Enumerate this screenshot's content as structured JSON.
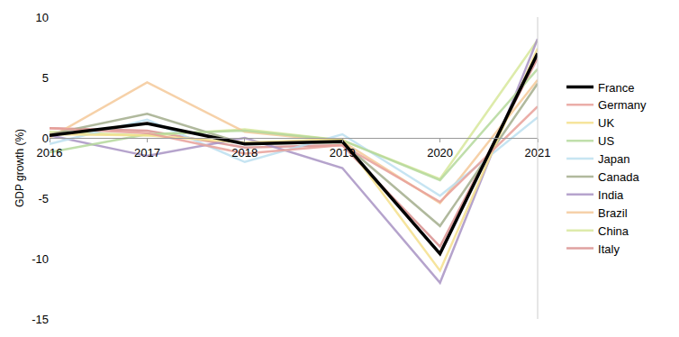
{
  "chart_data": {
    "type": "line",
    "y_label": "GDP growth (%)",
    "categories": [
      "2016",
      "2017",
      "2018",
      "2019",
      "2020",
      "2021"
    ],
    "series": [
      {
        "name": "France",
        "color": "#000000",
        "values": [
          0.2,
          1.2,
          -0.5,
          -0.3,
          -9.6,
          7.0
        ]
      },
      {
        "name": "Germany",
        "color": "#e8a09a",
        "values": [
          0.8,
          0.4,
          -1.3,
          -0.6,
          -5.3,
          2.6
        ]
      },
      {
        "name": "UK",
        "color": "#f5e08c",
        "values": [
          0.3,
          0.2,
          -0.4,
          -0.1,
          -11.0,
          7.4
        ]
      },
      {
        "name": "US",
        "color": "#b5d99c",
        "values": [
          -1.2,
          0.3,
          0.6,
          -0.2,
          -3.5,
          5.7
        ]
      },
      {
        "name": "Japan",
        "color": "#bde0f0",
        "values": [
          -0.5,
          1.5,
          -2.0,
          0.3,
          -4.8,
          1.7
        ]
      },
      {
        "name": "Canada",
        "color": "#a3ad8c",
        "values": [
          0.3,
          2.0,
          -0.5,
          -0.4,
          -7.3,
          4.5
        ]
      },
      {
        "name": "India",
        "color": "#a994c4",
        "values": [
          0.2,
          -1.5,
          0.0,
          -2.5,
          -12.0,
          8.2
        ]
      },
      {
        "name": "Brazil",
        "color": "#f5c99a",
        "values": [
          0.0,
          4.6,
          0.5,
          -0.3,
          -5.4,
          4.8
        ]
      },
      {
        "name": "China",
        "color": "#d8e89c",
        "values": [
          0.5,
          0.2,
          0.7,
          -0.2,
          -3.4,
          8.1
        ]
      },
      {
        "name": "Italy",
        "color": "#d9908f",
        "values": [
          0.8,
          0.6,
          -0.8,
          -0.6,
          -9.0,
          6.6
        ]
      }
    ],
    "ylim": [
      -15,
      10
    ],
    "yticks": [
      -15,
      -10,
      -5,
      0,
      5,
      10
    ],
    "grid": false,
    "legend": "right"
  }
}
